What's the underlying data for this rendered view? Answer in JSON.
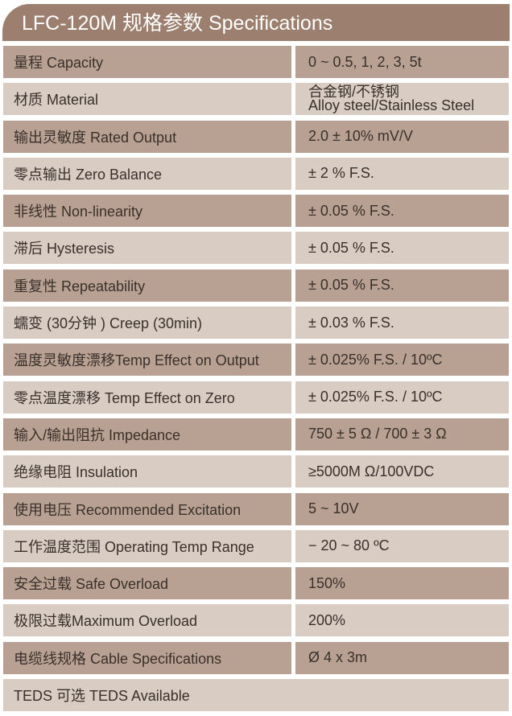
{
  "title": "LFC-120M 规格参数 Specifications",
  "colors": {
    "header": "#9c7f6e",
    "row_dark": "#b8a193",
    "row_light": "#d8ccc3"
  },
  "specs": [
    {
      "label": "量程 Capacity",
      "value": "0 ~ 0.5, 1, 2, 3, 5t"
    },
    {
      "label": "材质 Material",
      "value": "合金钢/不锈钢",
      "value2": "Alloy steel/Stainless Steel"
    },
    {
      "label": "输出灵敏度 Rated Output",
      "value": "2.0 ± 10% mV/V"
    },
    {
      "label": "零点输出  Zero Balance",
      "value": "± 2 % F.S."
    },
    {
      "label": "非线性 Non-linearity",
      "value": "± 0.05 % F.S."
    },
    {
      "label": "滞后 Hysteresis",
      "value": "± 0.05 % F.S."
    },
    {
      "label": "重复性 Repeatability",
      "value": "± 0.05 % F.S."
    },
    {
      "label": "蠕变 (30分钟 ) Creep (30min)",
      "value": "± 0.03 % F.S."
    },
    {
      "label": "温度灵敏度漂移Temp Effect on Output",
      "value": "± 0.025% F.S. / 10ºC"
    },
    {
      "label": "零点温度漂移 Temp Effect on Zero",
      "value": "± 0.025% F.S. / 10ºC"
    },
    {
      "label": "输入/输出阻抗 Impedance",
      "value": "750 ± 5 Ω  / 700 ± 3 Ω"
    },
    {
      "label": "绝缘电阻  Insulation",
      "value": "≥5000M Ω/100VDC"
    },
    {
      "label": "使用电压 Recommended Excitation",
      "value": "5 ~ 10V"
    },
    {
      "label": "工作温度范围 Operating Temp  Range",
      "value": "− 20 ~ 80 ºC"
    },
    {
      "label": "安全过载 Safe Overload",
      "value": "150%"
    },
    {
      "label": "极限过载Maximum Overload",
      "value": "200%"
    },
    {
      "label": "电缆线规格 Cable Specifications",
      "value": "Ø 4 x 3m"
    }
  ],
  "footer": "TEDS 可选 TEDS Available"
}
